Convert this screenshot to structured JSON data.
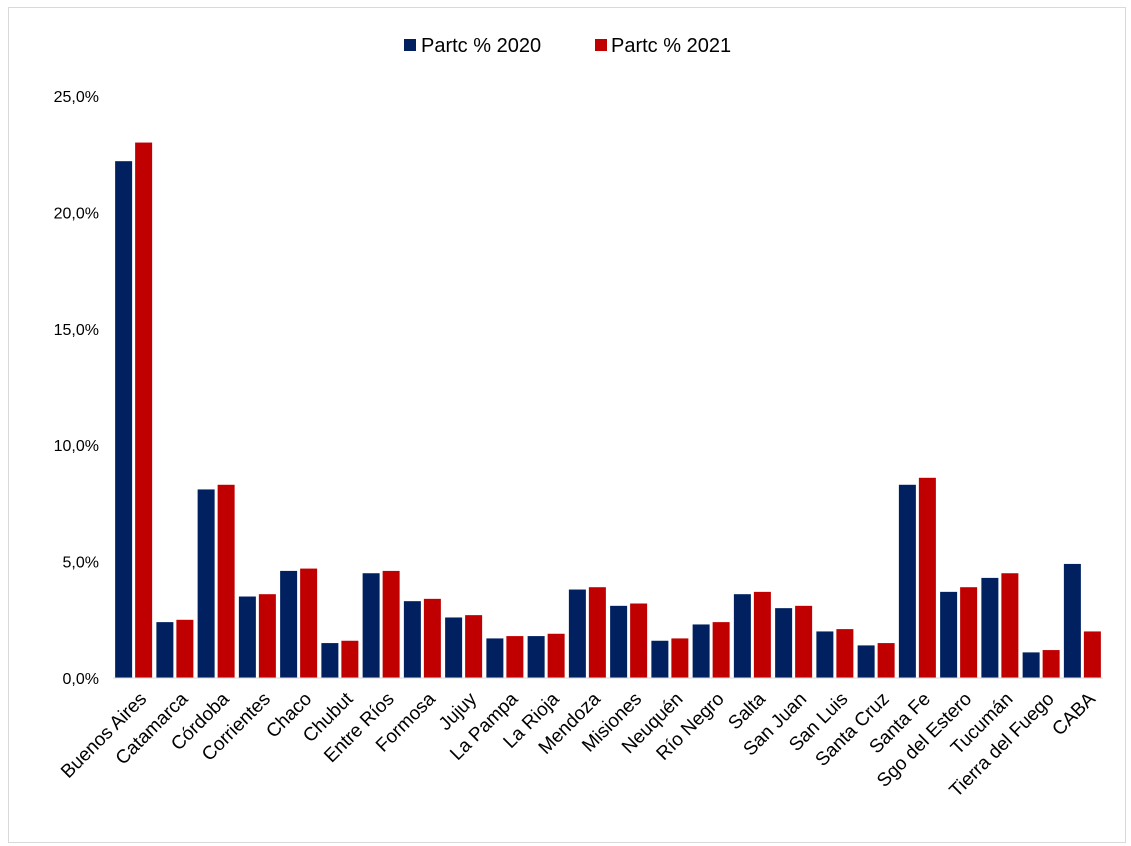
{
  "chart_data": {
    "type": "bar",
    "title": "",
    "xlabel": "",
    "ylabel": "",
    "ylim": [
      0,
      25
    ],
    "yticks": [
      0,
      5,
      10,
      15,
      20,
      25
    ],
    "ytick_labels": [
      "0,0%",
      "5,0%",
      "10,0%",
      "15,0%",
      "20,0%",
      "25,0%"
    ],
    "grid": false,
    "legend_position": "top",
    "categories": [
      "Buenos Aires",
      "Catamarca",
      "Córdoba",
      "Corrientes",
      "Chaco",
      "Chubut",
      "Entre Ríos",
      "Formosa",
      "Jujuy",
      "La Pampa",
      "La Rioja",
      "Mendoza",
      "Misiones",
      "Neuquén",
      "Río Negro",
      "Salta",
      "San Juan",
      "San Luis",
      "Santa Cruz",
      "Santa Fe",
      "Sgo del Estero",
      "Tucumán",
      "Tierra del Fuego",
      "CABA"
    ],
    "series": [
      {
        "name": "Partc % 2020",
        "color": "#002060",
        "values": [
          22.2,
          2.4,
          8.1,
          3.5,
          4.6,
          1.5,
          4.5,
          3.3,
          2.6,
          1.7,
          1.8,
          3.8,
          3.1,
          1.6,
          2.3,
          3.6,
          3.0,
          2.0,
          1.4,
          8.3,
          3.7,
          4.3,
          1.1,
          4.9
        ]
      },
      {
        "name": "Partc % 2021",
        "color": "#C00000",
        "values": [
          23.0,
          2.5,
          8.3,
          3.6,
          4.7,
          1.6,
          4.6,
          3.4,
          2.7,
          1.8,
          1.9,
          3.9,
          3.2,
          1.7,
          2.4,
          3.7,
          3.1,
          2.1,
          1.5,
          8.6,
          3.9,
          4.5,
          1.2,
          2.0
        ]
      }
    ]
  }
}
